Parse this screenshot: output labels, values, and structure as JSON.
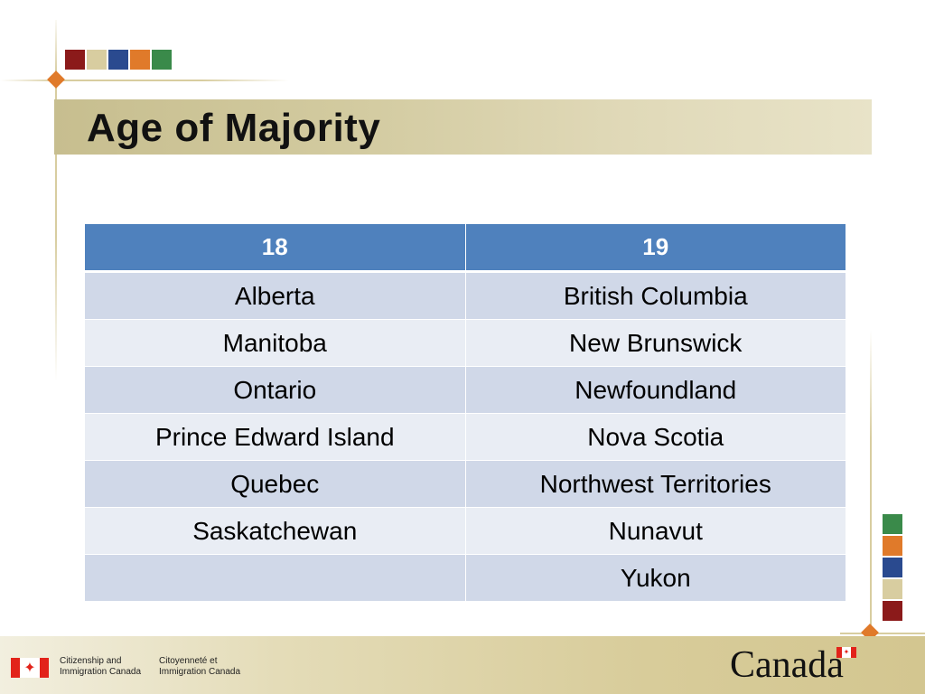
{
  "slide": {
    "title": "Age of Majority",
    "accent_colors": [
      "#8b1a1a",
      "#d8cda0",
      "#2a4a8f",
      "#e07a2a",
      "#3a8a4a"
    ]
  },
  "table": {
    "headers": [
      "18",
      "19"
    ],
    "rows": [
      [
        "Alberta",
        "British Columbia"
      ],
      [
        "Manitoba",
        "New Brunswick"
      ],
      [
        "Ontario",
        "Newfoundland"
      ],
      [
        "Prince Edward Island",
        "Nova Scotia"
      ],
      [
        "Quebec",
        "Northwest Territories"
      ],
      [
        "Saskatchewan",
        "Nunavut"
      ],
      [
        "",
        "Yukon"
      ]
    ],
    "header_color": "#4f81bd",
    "row_colors": [
      "#d0d8e8",
      "#e9edf4"
    ]
  },
  "footer": {
    "department_en": [
      "Citizenship and",
      "Immigration Canada"
    ],
    "department_fr": [
      "Citoyenneté et",
      "Immigration Canada"
    ],
    "wordmark": "Canada",
    "flag_icon": "canada-flag-icon"
  }
}
